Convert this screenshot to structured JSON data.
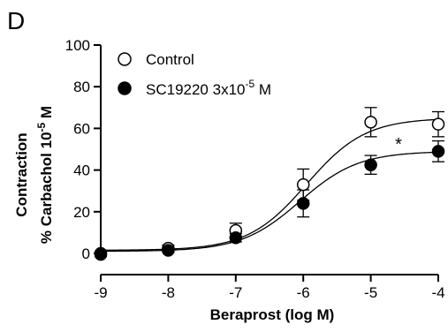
{
  "chart_data": {
    "type": "scatter",
    "panel_label": "D",
    "xlabel": "Beraprost (log M)",
    "ylabel_line1": "Contraction",
    "ylabel_line2_prefix": "% Carbachol 10",
    "ylabel_line2_exp": "-5",
    "ylabel_line2_suffix": " M",
    "xlim": [
      -9,
      -4
    ],
    "ylim": [
      0,
      100
    ],
    "xticks": [
      -9,
      -8,
      -7,
      -6,
      -5,
      -4
    ],
    "xtick_labels": [
      "-9",
      "-8",
      "-7",
      "-6",
      "-5",
      "-4"
    ],
    "yticks": [
      0,
      20,
      40,
      60,
      80,
      100
    ],
    "ytick_labels": [
      "0",
      "20",
      "40",
      "60",
      "80",
      "100"
    ],
    "legend_position": "top-left",
    "annotation": "*",
    "series": [
      {
        "name": "Control",
        "marker": "open-circle",
        "color": "#000000",
        "x": [
          -9,
          -8,
          -7,
          -6,
          -5,
          -4
        ],
        "y": [
          0,
          2.5,
          11,
          33,
          63,
          62
        ],
        "err": [
          1.0,
          1.5,
          3.5,
          7.5,
          7.0,
          6.0
        ],
        "fit": {
          "bottom": 1.5,
          "top": 65,
          "logEC50": -5.95,
          "hill": 1.0
        }
      },
      {
        "name": "SC19220 3x10-5 M",
        "legend_prefix": "SC19220 3x10",
        "legend_exp": "-5",
        "legend_suffix": " M",
        "marker": "filled-circle",
        "color": "#000000",
        "x": [
          -9,
          -8,
          -7,
          -6,
          -5,
          -4
        ],
        "y": [
          -0.5,
          1.5,
          7.5,
          24,
          42.5,
          49
        ],
        "err": [
          1.0,
          1.0,
          2.0,
          6.5,
          4.5,
          5.0
        ],
        "fit": {
          "bottom": 1.0,
          "top": 49,
          "logEC50": -6.05,
          "hill": 1.0
        }
      }
    ]
  }
}
